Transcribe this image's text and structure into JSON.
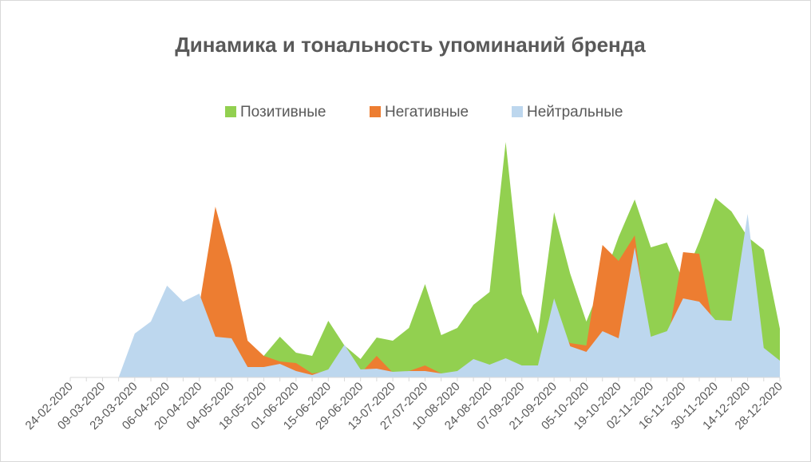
{
  "chart_data": {
    "type": "area",
    "title": "Динамика и тональность упоминаний бренда",
    "categories": [
      "24-02-2020",
      null,
      "09-03-2020",
      null,
      "23-03-2020",
      null,
      "06-04-2020",
      null,
      "20-04-2020",
      null,
      "04-05-2020",
      null,
      "18-05-2020",
      null,
      "01-06-2020",
      null,
      "15-06-2020",
      null,
      "29-06-2020",
      null,
      "13-07-2020",
      null,
      "27-07-2020",
      null,
      "10-08-2020",
      null,
      "24-08-2020",
      null,
      "07-09-2020",
      null,
      "21-09-2020",
      null,
      "05-10-2020",
      null,
      "19-10-2020",
      null,
      "02-11-2020",
      null,
      "16-11-2020",
      null,
      "30-11-2020",
      null,
      "14-12-2020",
      null,
      "28-12-2020"
    ],
    "series": [
      {
        "name": "Позитивные",
        "color": "#92d050",
        "values": [
          0,
          0,
          0,
          0,
          10,
          10,
          10,
          10,
          10,
          20,
          20,
          15,
          27,
          51,
          31,
          27,
          71,
          40,
          23,
          50,
          46,
          62,
          117,
          53,
          62,
          91,
          107,
          295,
          105,
          55,
          207,
          130,
          70,
          120,
          176,
          223,
          163,
          169,
          121,
          170,
          225,
          208,
          176,
          160,
          61
        ]
      },
      {
        "name": "Негативные",
        "color": "#ed7d31",
        "values": [
          0,
          0,
          0,
          0,
          20,
          25,
          30,
          40,
          90,
          214,
          140,
          46,
          27,
          20,
          18,
          5,
          8,
          35,
          5,
          27,
          6,
          8,
          15,
          5,
          3,
          10,
          10,
          12,
          15,
          15,
          60,
          43,
          40,
          166,
          146,
          178,
          30,
          40,
          157,
          155,
          50,
          40,
          100,
          20,
          10
        ]
      },
      {
        "name": "Нейтральные",
        "color": "#bdd7ee",
        "values": [
          0,
          0,
          0,
          0,
          55,
          70,
          115,
          95,
          105,
          51,
          49,
          13,
          13,
          17,
          8,
          3,
          10,
          41,
          10,
          11,
          7,
          8,
          8,
          5,
          8,
          23,
          16,
          24,
          15,
          15,
          99,
          39,
          32,
          58,
          49,
          163,
          51,
          58,
          99,
          95,
          72,
          71,
          205,
          37,
          21
        ]
      }
    ],
    "ylim": [
      0,
      300
    ]
  }
}
